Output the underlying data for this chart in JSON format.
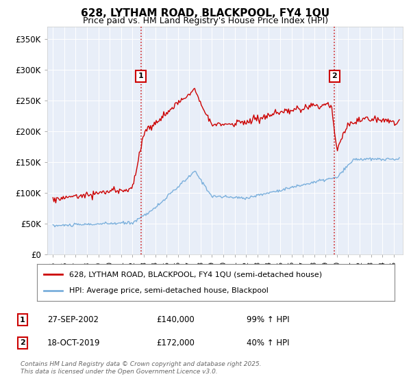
{
  "title": "628, LYTHAM ROAD, BLACKPOOL, FY4 1QU",
  "subtitle": "Price paid vs. HM Land Registry's House Price Index (HPI)",
  "ylabel_ticks": [
    "£0",
    "£50K",
    "£100K",
    "£150K",
    "£200K",
    "£250K",
    "£300K",
    "£350K"
  ],
  "ytick_values": [
    0,
    50000,
    100000,
    150000,
    200000,
    250000,
    300000,
    350000
  ],
  "ylim": [
    0,
    370000
  ],
  "xlim_start": 1994.5,
  "xlim_end": 2025.8,
  "red_color": "#cc0000",
  "blue_color": "#7aafdc",
  "background_color": "#e8eef8",
  "grid_color": "#ffffff",
  "legend_label_red": "628, LYTHAM ROAD, BLACKPOOL, FY4 1QU (semi-detached house)",
  "legend_label_blue": "HPI: Average price, semi-detached house, Blackpool",
  "sale1_date": 2002.74,
  "sale1_price": 140000,
  "sale1_label": "1",
  "sale2_date": 2019.79,
  "sale2_price": 172000,
  "sale2_label": "2",
  "footer_line1": "Contains HM Land Registry data © Crown copyright and database right 2025.",
  "footer_line2": "This data is licensed under the Open Government Licence v3.0.",
  "table_row1": [
    "1",
    "27-SEP-2002",
    "£140,000",
    "99% ↑ HPI"
  ],
  "table_row2": [
    "2",
    "18-OCT-2019",
    "£172,000",
    "40% ↑ HPI"
  ]
}
